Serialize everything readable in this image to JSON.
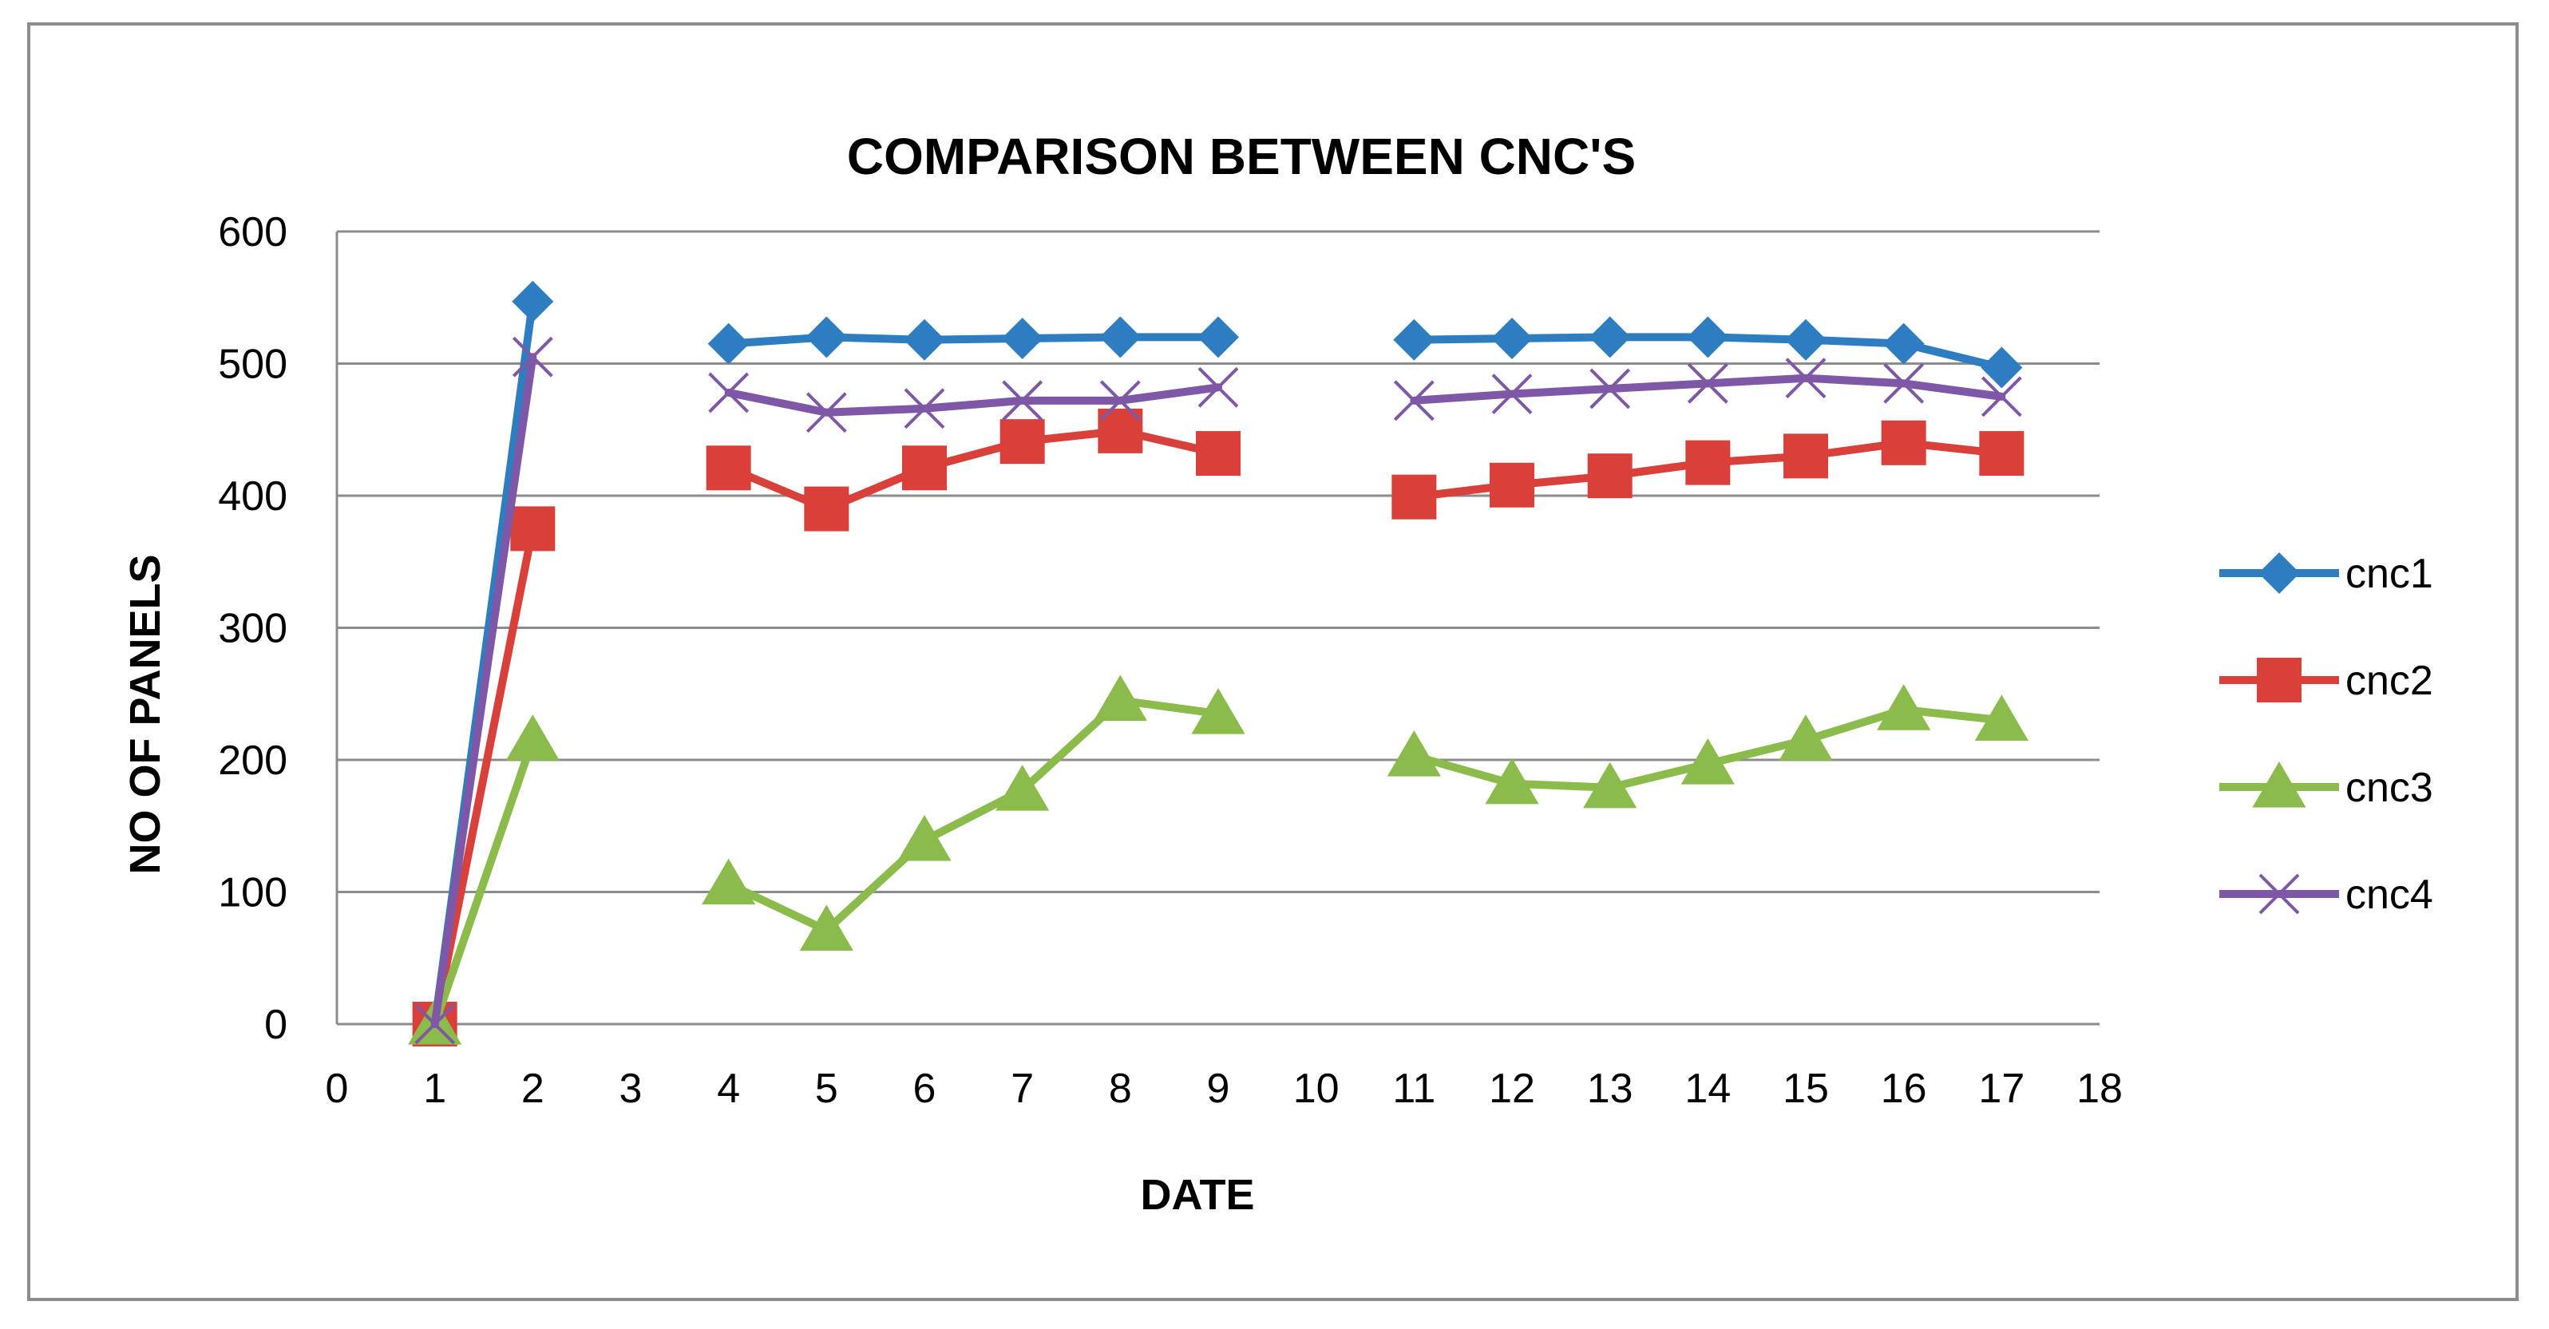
{
  "chart_data": {
    "type": "line",
    "title": "COMPARISON BETWEEN CNC'S",
    "xlabel": "DATE",
    "ylabel": "NO OF PANELS",
    "xlim": [
      0,
      18
    ],
    "ylim": [
      0,
      600
    ],
    "xticks": [
      0,
      1,
      2,
      3,
      4,
      5,
      6,
      7,
      8,
      9,
      10,
      11,
      12,
      13,
      14,
      15,
      16,
      17,
      18
    ],
    "yticks": [
      0,
      100,
      200,
      300,
      400,
      500,
      600
    ],
    "grid": "horizontal",
    "legend_position": "right",
    "series": [
      {
        "name": "cnc1",
        "color": "#2E7DC1",
        "marker": "diamond",
        "points": [
          [
            1,
            0
          ],
          [
            2,
            547
          ],
          [
            4,
            515
          ],
          [
            5,
            520
          ],
          [
            6,
            518
          ],
          [
            7,
            519
          ],
          [
            8,
            520
          ],
          [
            9,
            520
          ],
          [
            11,
            518
          ],
          [
            12,
            519
          ],
          [
            13,
            520
          ],
          [
            14,
            520
          ],
          [
            15,
            518
          ],
          [
            16,
            515
          ],
          [
            17,
            497
          ]
        ]
      },
      {
        "name": "cnc2",
        "color": "#D9403A",
        "marker": "square",
        "points": [
          [
            1,
            0
          ],
          [
            2,
            375
          ],
          [
            4,
            421
          ],
          [
            5,
            390
          ],
          [
            6,
            421
          ],
          [
            7,
            441
          ],
          [
            8,
            449
          ],
          [
            9,
            432
          ],
          [
            11,
            399
          ],
          [
            12,
            408
          ],
          [
            13,
            415
          ],
          [
            14,
            425
          ],
          [
            15,
            430
          ],
          [
            16,
            440
          ],
          [
            17,
            432
          ]
        ]
      },
      {
        "name": "cnc3",
        "color": "#8BBB4A",
        "marker": "triangle",
        "points": [
          [
            1,
            0
          ],
          [
            2,
            215
          ],
          [
            4,
            106
          ],
          [
            5,
            71
          ],
          [
            6,
            139
          ],
          [
            7,
            177
          ],
          [
            8,
            245
          ],
          [
            9,
            235
          ],
          [
            11,
            203
          ],
          [
            12,
            182
          ],
          [
            13,
            179
          ],
          [
            14,
            197
          ],
          [
            15,
            215
          ],
          [
            16,
            238
          ],
          [
            17,
            230
          ]
        ]
      },
      {
        "name": "cnc4",
        "color": "#7E57A6",
        "marker": "x",
        "points": [
          [
            1,
            0
          ],
          [
            2,
            505
          ],
          [
            4,
            478
          ],
          [
            5,
            463
          ],
          [
            6,
            466
          ],
          [
            7,
            472
          ],
          [
            8,
            472
          ],
          [
            9,
            482
          ],
          [
            11,
            472
          ],
          [
            12,
            477
          ],
          [
            13,
            481
          ],
          [
            14,
            485
          ],
          [
            15,
            489
          ],
          [
            16,
            485
          ],
          [
            17,
            475
          ]
        ]
      }
    ]
  }
}
